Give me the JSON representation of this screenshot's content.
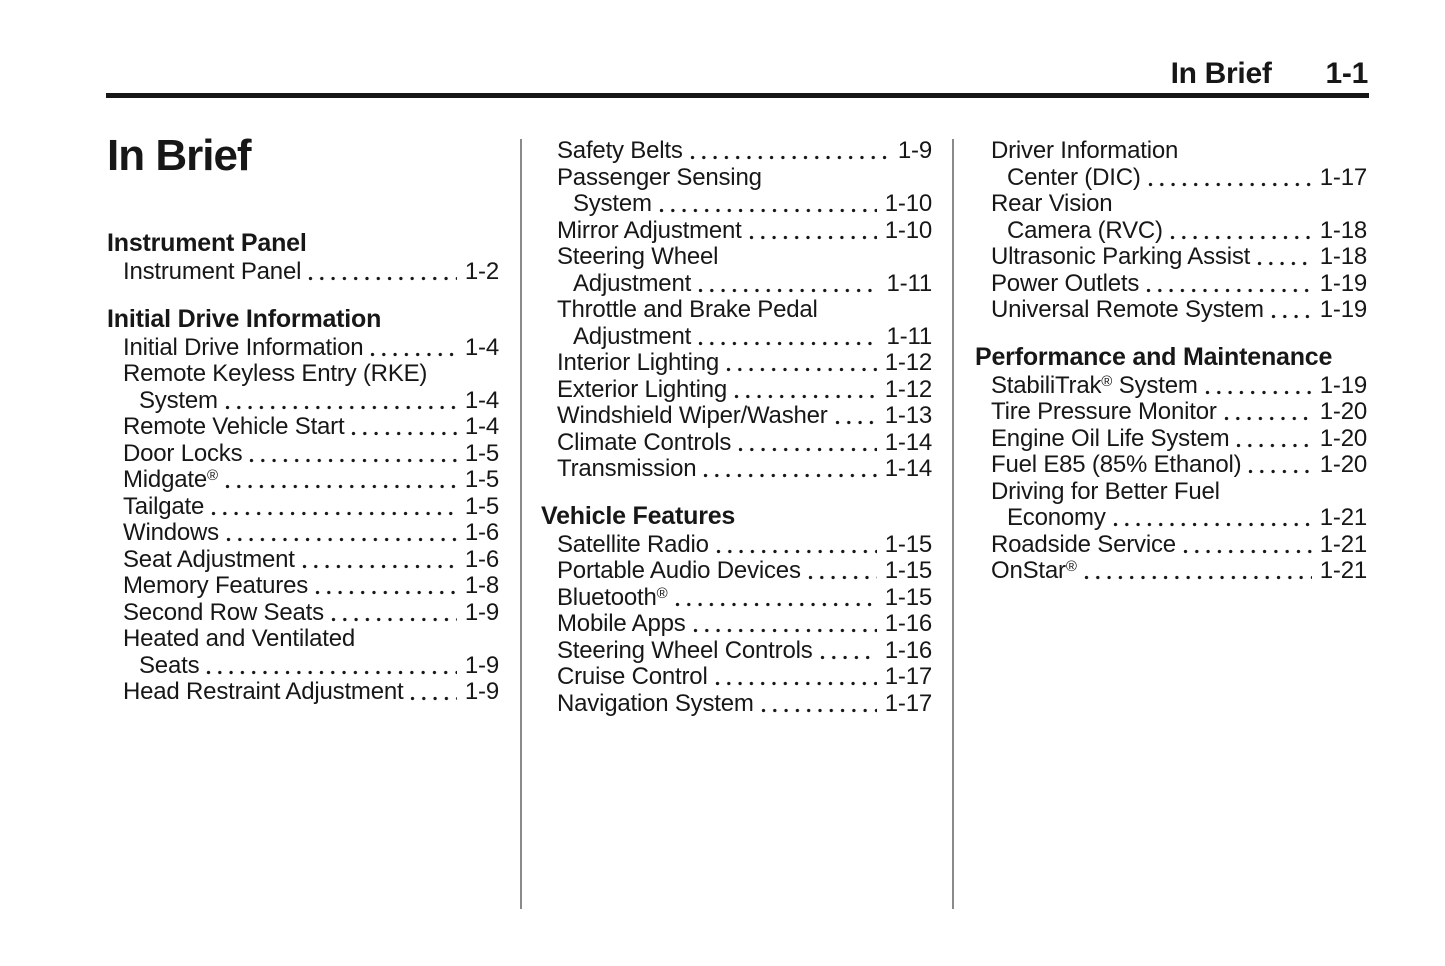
{
  "header": {
    "chapter": "In Brief",
    "page_number": "1-1"
  },
  "title": "In Brief",
  "colors": {
    "text": "#171717",
    "divider": "#8a8a8a",
    "background": "#ffffff"
  },
  "columns": [
    {
      "sections": [
        {
          "heading": "Instrument Panel",
          "items": [
            {
              "text": "Instrument Panel",
              "page": "1-2"
            }
          ]
        },
        {
          "heading": "Initial Drive Information",
          "items": [
            {
              "text": "Initial Drive Information",
              "page": "1-4"
            },
            {
              "pre": "Remote Keyless Entry (RKE)",
              "text": "System",
              "page": "1-4"
            },
            {
              "text": "Remote Vehicle Start",
              "page": "1-4"
            },
            {
              "text": "Door Locks",
              "page": "1-5"
            },
            {
              "text": "Midgate",
              "sup": "®",
              "page": "1-5"
            },
            {
              "text": "Tailgate",
              "page": "1-5"
            },
            {
              "text": "Windows",
              "page": "1-6"
            },
            {
              "text": "Seat Adjustment",
              "page": "1-6"
            },
            {
              "text": "Memory Features",
              "page": "1-8"
            },
            {
              "text": "Second Row Seats",
              "page": "1-9"
            },
            {
              "pre": "Heated and Ventilated",
              "text": "Seats",
              "page": "1-9"
            },
            {
              "text": "Head Restraint Adjustment",
              "page": "1-9"
            }
          ]
        }
      ]
    },
    {
      "sections": [
        {
          "heading": null,
          "items": [
            {
              "text": "Safety Belts",
              "page": "1-9"
            },
            {
              "pre": "Passenger Sensing",
              "text": "System",
              "page": "1-10"
            },
            {
              "text": "Mirror Adjustment",
              "page": "1-10"
            },
            {
              "pre": "Steering Wheel",
              "text": "Adjustment",
              "page": "1-11"
            },
            {
              "pre": "Throttle and Brake Pedal",
              "text": "Adjustment",
              "page": "1-11"
            },
            {
              "text": "Interior Lighting",
              "page": "1-12"
            },
            {
              "text": "Exterior Lighting",
              "page": "1-12"
            },
            {
              "text": "Windshield Wiper/Washer",
              "page": "1-13"
            },
            {
              "text": "Climate Controls",
              "page": "1-14"
            },
            {
              "text": "Transmission",
              "page": "1-14"
            }
          ]
        },
        {
          "heading": "Vehicle Features",
          "items": [
            {
              "text": "Satellite Radio",
              "page": "1-15"
            },
            {
              "text": "Portable Audio Devices",
              "page": "1-15"
            },
            {
              "text": "Bluetooth",
              "sup": "®",
              "page": "1-15"
            },
            {
              "text": "Mobile Apps",
              "page": "1-16"
            },
            {
              "text": "Steering Wheel Controls",
              "page": "1-16"
            },
            {
              "text": "Cruise Control",
              "page": "1-17"
            },
            {
              "text": "Navigation System",
              "page": "1-17"
            }
          ]
        }
      ]
    },
    {
      "sections": [
        {
          "heading": null,
          "items": [
            {
              "pre": "Driver Information",
              "text": "Center (DIC)",
              "page": "1-17"
            },
            {
              "pre": "Rear Vision",
              "text": "Camera (RVC)",
              "page": "1-18"
            },
            {
              "text": "Ultrasonic Parking Assist",
              "page": "1-18"
            },
            {
              "text": "Power Outlets",
              "page": "1-19"
            },
            {
              "text": "Universal Remote System",
              "page": "1-19"
            }
          ]
        },
        {
          "heading": "Performance and Maintenance",
          "items": [
            {
              "text": "StabiliTrak",
              "sup": "®",
              "after": " System",
              "page": "1-19"
            },
            {
              "text": "Tire Pressure Monitor",
              "page": "1-20"
            },
            {
              "text": "Engine Oil Life System",
              "page": "1-20"
            },
            {
              "text": "Fuel E85 (85% Ethanol)",
              "page": "1-20"
            },
            {
              "pre": "Driving for Better Fuel",
              "text": "Economy",
              "page": "1-21"
            },
            {
              "text": "Roadside Service",
              "page": "1-21"
            },
            {
              "text": "OnStar",
              "sup": "®",
              "page": "1-21"
            }
          ]
        }
      ]
    }
  ]
}
